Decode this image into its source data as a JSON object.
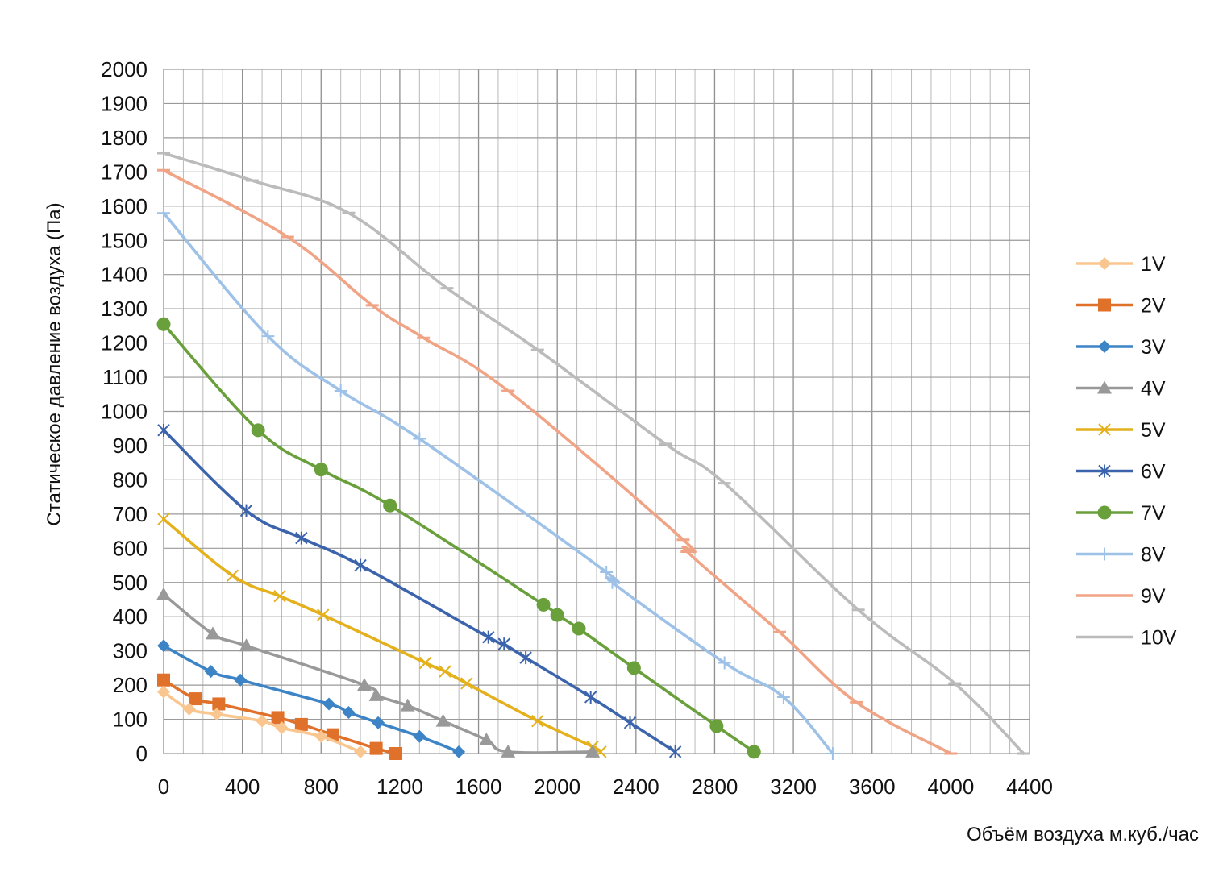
{
  "chart_data": {
    "type": "line",
    "title": "",
    "xlabel": "Объём воздуха м.куб./час",
    "ylabel": "Статическое давление воздуха (Па)",
    "xlim": [
      0,
      4400
    ],
    "ylim": [
      0,
      2000
    ],
    "x_major_step": 400,
    "x_minor_step": 100,
    "y_step": 100,
    "grid": true,
    "legend_position": "right",
    "x_ticks": [
      "0",
      "400",
      "800",
      "1200",
      "1600",
      "2000",
      "2400",
      "2800",
      "3200",
      "3600",
      "4000",
      "4400"
    ],
    "y_ticks": [
      "0",
      "100",
      "200",
      "300",
      "400",
      "500",
      "600",
      "700",
      "800",
      "900",
      "1000",
      "1100",
      "1200",
      "1300",
      "1400",
      "1500",
      "1600",
      "1700",
      "1800",
      "1900",
      "2000"
    ],
    "series": [
      {
        "name": "1V",
        "color": "#fac68f",
        "marker": "diamond",
        "x": [
          0,
          130,
          270,
          500,
          600,
          800,
          1000
        ],
        "y": [
          180,
          130,
          115,
          95,
          75,
          50,
          5
        ]
      },
      {
        "name": "2V",
        "color": "#e0712b",
        "marker": "square",
        "x": [
          0,
          160,
          280,
          580,
          700,
          860,
          1080,
          1180
        ],
        "y": [
          215,
          160,
          145,
          105,
          85,
          55,
          15,
          0
        ]
      },
      {
        "name": "3V",
        "color": "#3d84c6",
        "marker": "diamond",
        "x": [
          0,
          240,
          390,
          840,
          940,
          1090,
          1300,
          1500
        ],
        "y": [
          315,
          240,
          215,
          145,
          120,
          90,
          50,
          5
        ]
      },
      {
        "name": "4V",
        "color": "#999999",
        "marker": "triangle",
        "x": [
          0,
          250,
          420,
          1020,
          1080,
          1240,
          1420,
          1640,
          1750,
          2180
        ],
        "y": [
          465,
          350,
          315,
          200,
          170,
          140,
          95,
          40,
          5,
          5
        ]
      },
      {
        "name": "5V",
        "color": "#e4b11d",
        "marker": "x",
        "x": [
          0,
          350,
          590,
          810,
          1330,
          1430,
          1540,
          1900,
          2180,
          2220
        ],
        "y": [
          685,
          520,
          460,
          405,
          265,
          240,
          205,
          95,
          20,
          5
        ]
      },
      {
        "name": "6V",
        "color": "#3c64ad",
        "marker": "star",
        "x": [
          0,
          420,
          700,
          1000,
          1650,
          1730,
          1840,
          2170,
          2370,
          2600
        ],
        "y": [
          945,
          710,
          630,
          550,
          340,
          320,
          280,
          165,
          90,
          5
        ]
      },
      {
        "name": "7V",
        "color": "#6aa03c",
        "marker": "circle",
        "x": [
          0,
          480,
          800,
          1150,
          1930,
          2000,
          2110,
          2390,
          2810,
          3000
        ],
        "y": [
          1255,
          945,
          830,
          725,
          435,
          405,
          365,
          250,
          80,
          5
        ]
      },
      {
        "name": "8V",
        "color": "#9ec1e8",
        "marker": "plus",
        "x": [
          0,
          530,
          900,
          1300,
          2250,
          2280,
          2850,
          3150,
          3400
        ],
        "y": [
          1580,
          1220,
          1060,
          920,
          530,
          500,
          265,
          165,
          0
        ]
      },
      {
        "name": "9V",
        "color": "#f1a485",
        "marker": "dash",
        "x": [
          0,
          630,
          1060,
          1320,
          1750,
          2640,
          2660,
          3130,
          3520,
          4000
        ],
        "y": [
          1705,
          1510,
          1310,
          1215,
          1060,
          625,
          590,
          355,
          150,
          0
        ]
      },
      {
        "name": "10V",
        "color": "#bbbbbb",
        "marker": "dash",
        "x": [
          0,
          450,
          940,
          1440,
          1900,
          2550,
          2850,
          3530,
          4020,
          4370
        ],
        "y": [
          1755,
          1675,
          1580,
          1360,
          1180,
          905,
          790,
          420,
          205,
          0
        ]
      }
    ]
  }
}
